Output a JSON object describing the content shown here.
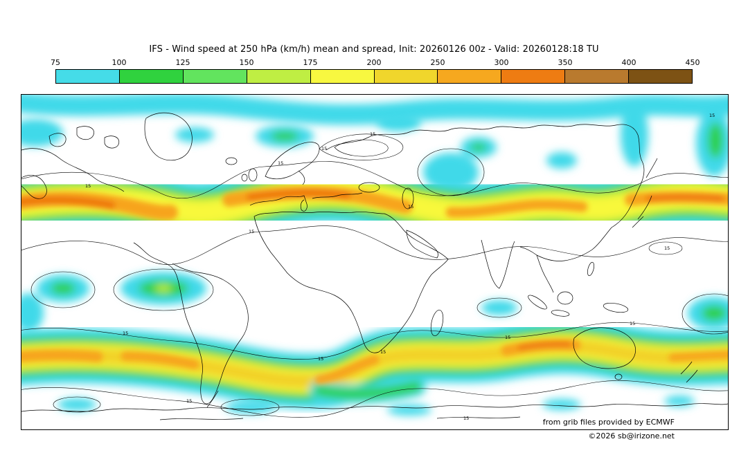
{
  "header": {
    "title": "IFS - Wind speed at 250 hPa (km/h) mean and spread, Init: 20260126 00z - Valid: 20260128:18 TU"
  },
  "colorbar": {
    "tick_labels": [
      "75",
      "100",
      "125",
      "150",
      "175",
      "200",
      "250",
      "300",
      "350",
      "400",
      "450"
    ],
    "segment_colors": [
      "#45dce8",
      "#30d23e",
      "#62e45e",
      "#bfee43",
      "#f8f840",
      "#f0d62c",
      "#f6a81f",
      "#ee7c12",
      "#b97a2e",
      "#7d5214"
    ]
  },
  "map": {
    "contour_label": "15",
    "band_colors": {
      "cyan": "#3fd9e9",
      "green": "#2ed04a",
      "ygreen": "#c6f03c",
      "yellow": "#f8f83a",
      "gold": "#f2cf25",
      "orange": "#f7a41c",
      "dorange": "#ee7711"
    }
  },
  "credits": {
    "provider": "from grib files provided by ECMWF",
    "copyright": "©2026 sb@irizone.net"
  },
  "chart_data": {
    "type": "heatmap",
    "title": "IFS - Wind speed at 250 hPa (km/h) mean and spread",
    "init": "20260126 00z",
    "valid": "20260128:18 TU",
    "color_scale_levels_kmh": [
      75,
      100,
      125,
      150,
      175,
      200,
      250,
      300,
      350,
      400,
      450
    ],
    "color_scale_colors": [
      "#45dce8",
      "#30d23e",
      "#62e45e",
      "#bfee43",
      "#f8f840",
      "#f0d62c",
      "#f6a81f",
      "#ee7c12",
      "#b97a2e",
      "#7d5214"
    ],
    "spread_contour_label": "15",
    "extent": "global world map with jet stream wind-speed bands in both hemispheres"
  }
}
